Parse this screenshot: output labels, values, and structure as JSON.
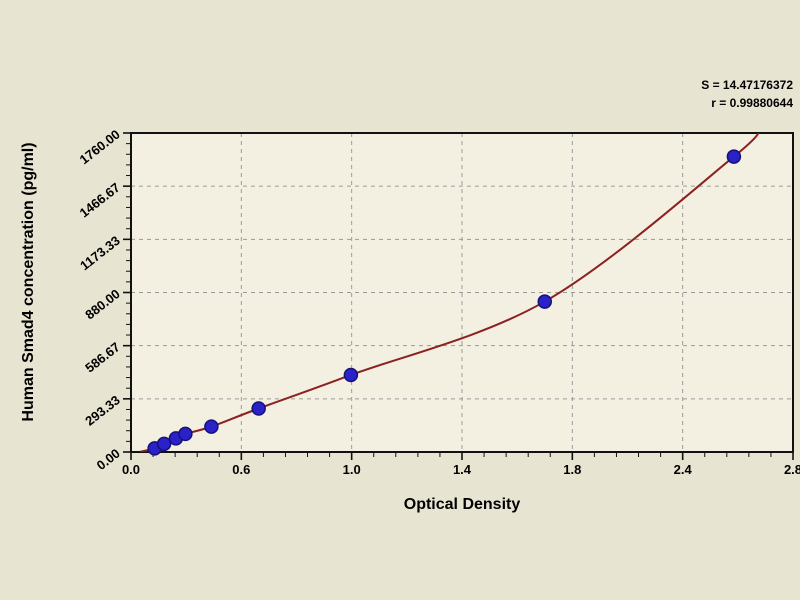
{
  "chart_data": {
    "type": "scatter",
    "title": "",
    "xlabel": "Optical Density",
    "ylabel": "Human Smad4 concentration (pg/ml)",
    "xlim": [
      0,
      2.8
    ],
    "ylim": [
      0,
      1760
    ],
    "grid": true,
    "legend": "none",
    "x_tick_labels": [
      "0.0",
      "0.6",
      "1.0",
      "1.4",
      "1.8",
      "2.4",
      "2.8"
    ],
    "y_tick_labels": [
      "0.00",
      "293.33",
      "586.67",
      "880.00",
      "1173.33",
      "1466.67",
      "1760.00"
    ],
    "stats": {
      "s": "S = 14.47176372",
      "r": "r = 0.99880644"
    },
    "series": [
      {
        "name": "standard-points",
        "type": "scatter",
        "points": [
          [
            0.1,
            20
          ],
          [
            0.14,
            45
          ],
          [
            0.19,
            75
          ],
          [
            0.23,
            100
          ],
          [
            0.34,
            140
          ],
          [
            0.54,
            240
          ],
          [
            0.93,
            425
          ],
          [
            1.75,
            830
          ],
          [
            2.55,
            1630
          ]
        ]
      },
      {
        "name": "fitted-curve",
        "type": "line",
        "points": [
          [
            0.04,
            2
          ],
          [
            0.1,
            20
          ],
          [
            0.14,
            45
          ],
          [
            0.19,
            75
          ],
          [
            0.23,
            100
          ],
          [
            0.34,
            140
          ],
          [
            0.54,
            240
          ],
          [
            0.93,
            425
          ],
          [
            1.75,
            830
          ],
          [
            2.55,
            1630
          ],
          [
            2.66,
            1795
          ]
        ]
      }
    ]
  },
  "colors": {
    "background": "#e8e4d2",
    "plot_background": "#f3f0e2",
    "border": "#111111",
    "grid": "#9a9a9a",
    "curve": "#8b2121",
    "marker_fill": "#2a21c9",
    "marker_edge": "#151177",
    "text": "#000000"
  }
}
